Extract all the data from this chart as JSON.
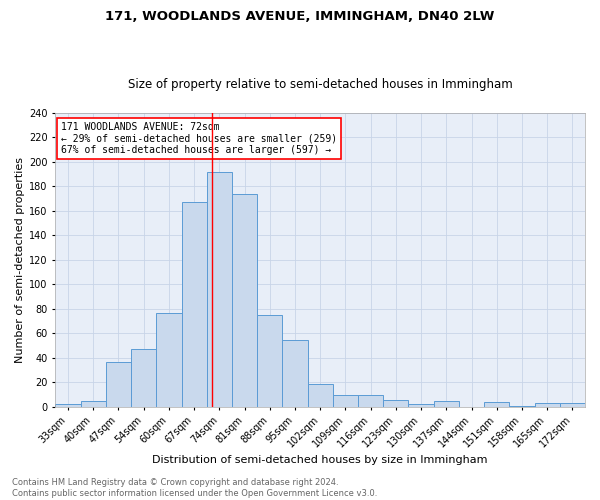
{
  "title1": "171, WOODLANDS AVENUE, IMMINGHAM, DN40 2LW",
  "title2": "Size of property relative to semi-detached houses in Immingham",
  "xlabel": "Distribution of semi-detached houses by size in Immingham",
  "ylabel": "Number of semi-detached properties",
  "footer1": "Contains HM Land Registry data © Crown copyright and database right 2024.",
  "footer2": "Contains public sector information licensed under the Open Government Licence v3.0.",
  "annotation_line1": "171 WOODLANDS AVENUE: 72sqm",
  "annotation_line2": "← 29% of semi-detached houses are smaller (259)",
  "annotation_line3": "67% of semi-detached houses are larger (597) →",
  "bar_labels": [
    "33sqm",
    "40sqm",
    "47sqm",
    "54sqm",
    "60sqm",
    "67sqm",
    "74sqm",
    "81sqm",
    "88sqm",
    "95sqm",
    "102sqm",
    "109sqm",
    "116sqm",
    "123sqm",
    "130sqm",
    "137sqm",
    "144sqm",
    "151sqm",
    "158sqm",
    "165sqm",
    "172sqm"
  ],
  "bar_values": [
    2,
    5,
    37,
    47,
    77,
    167,
    192,
    174,
    75,
    55,
    19,
    10,
    10,
    6,
    2,
    5,
    0,
    4,
    1,
    3,
    3
  ],
  "bar_color": "#c9d9ed",
  "bar_edgecolor": "#5b9bd5",
  "grid_color": "#c8d4e8",
  "background_color": "#e8eef8",
  "vline_color": "red",
  "vline_x_index": 5.7,
  "annotation_box_facecolor": "white",
  "annotation_box_edgecolor": "red",
  "ylim": [
    0,
    240
  ],
  "yticks": [
    0,
    20,
    40,
    60,
    80,
    100,
    120,
    140,
    160,
    180,
    200,
    220,
    240
  ],
  "title1_fontsize": 9.5,
  "title2_fontsize": 8.5,
  "ylabel_fontsize": 8,
  "xlabel_fontsize": 8,
  "tick_fontsize": 7,
  "annotation_fontsize": 7,
  "footer_fontsize": 6
}
